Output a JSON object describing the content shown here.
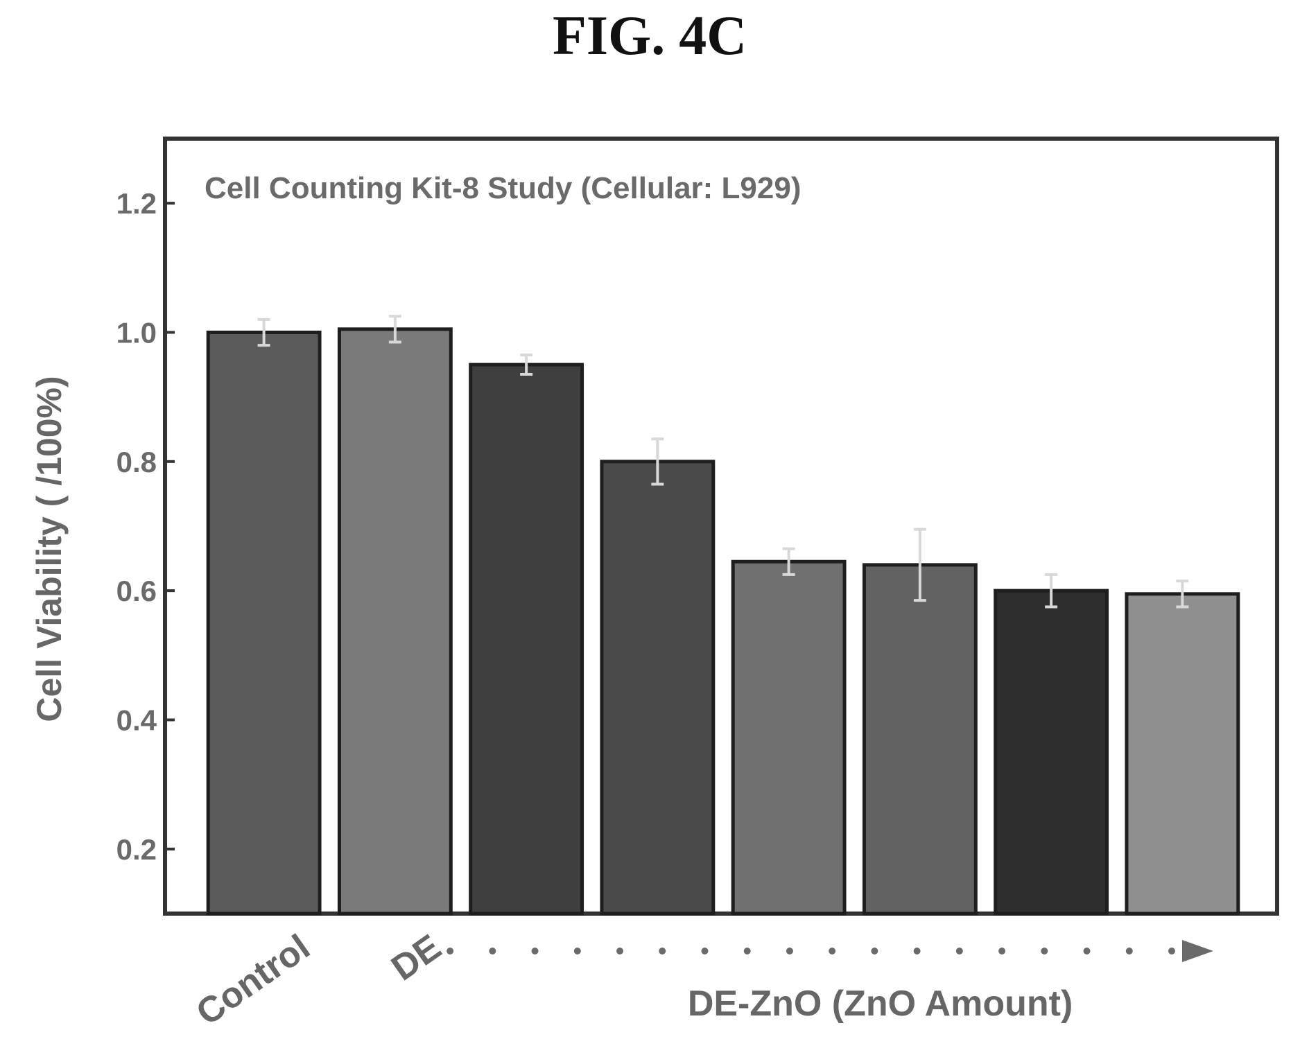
{
  "figure": {
    "label": "FIG. 4C"
  },
  "chart_data": {
    "type": "bar",
    "title": "Cell Counting Kit-8 Study (Cellular: L929)",
    "ylabel": "Cell Viability ( /100%)",
    "ylim": [
      0.1,
      1.3
    ],
    "yticks": [
      0.2,
      0.4,
      0.6,
      0.8,
      1.0,
      1.2
    ],
    "ytick_labels": [
      "0.2",
      "0.4",
      "0.6",
      "0.8",
      "1.0",
      "1.2"
    ],
    "categories": [
      "Control",
      "DE",
      "",
      "",
      "",
      "",
      "",
      ""
    ],
    "group_label": "DE-ZnO (ZnO Amount)",
    "values": [
      1.0,
      1.005,
      0.95,
      0.8,
      0.645,
      0.64,
      0.6,
      0.595
    ],
    "errors": [
      0.02,
      0.02,
      0.015,
      0.035,
      0.02,
      0.055,
      0.025,
      0.02
    ],
    "bar_colors": [
      "#5a5a5a",
      "#7a7a7a",
      "#3f3f3f",
      "#4a4a4a",
      "#707070",
      "#626262",
      "#2e2e2e",
      "#8f8f8f"
    ],
    "grid": false,
    "legend": "none"
  }
}
